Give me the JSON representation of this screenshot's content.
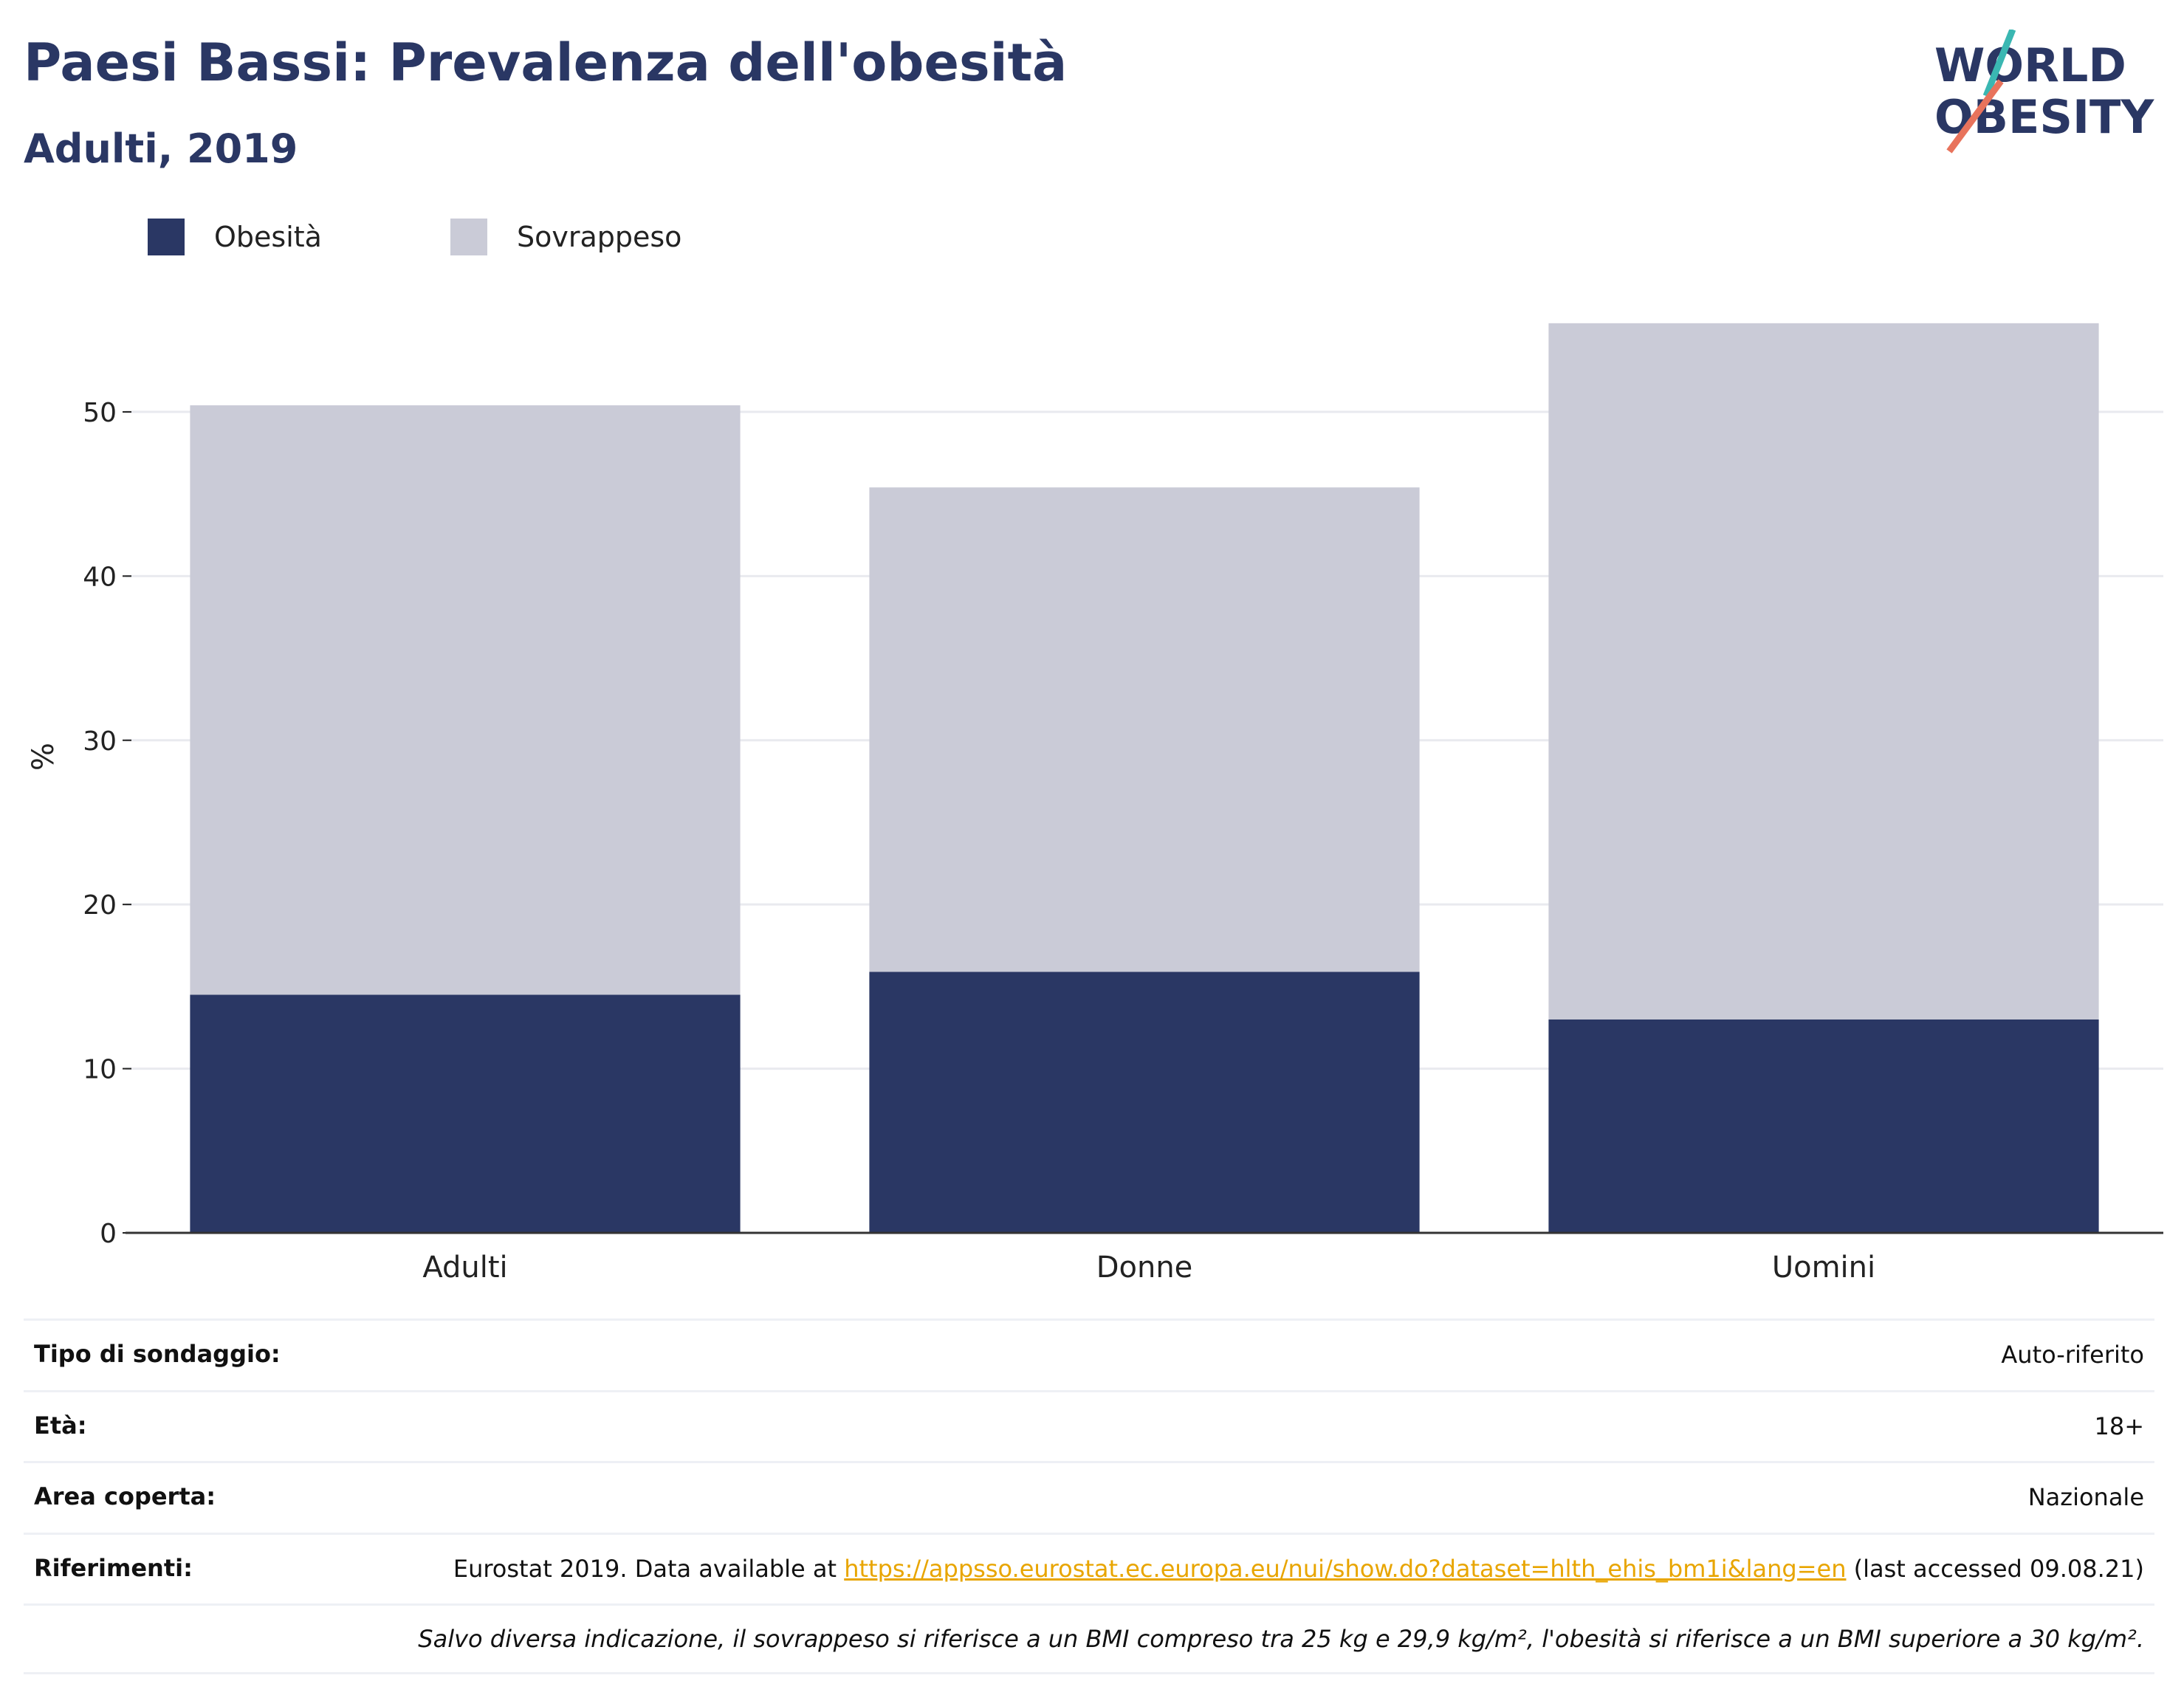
{
  "header": {
    "title": "Paesi Bassi: Prevalenza dell'obesità",
    "subtitle": "Adulti, 2019",
    "logo_line1": "WORLD",
    "logo_line2": "OBESITY"
  },
  "legend": {
    "obesity": "Obesità",
    "overweight": "Sovrappeso"
  },
  "colors": {
    "obesity": "#2a3764",
    "overweight": "#cacbd7",
    "text": "#2a3764",
    "link": "#e8a500",
    "logo_teal": "#3ab7b2",
    "logo_coral": "#e8735c"
  },
  "chart_data": {
    "type": "bar",
    "stacked": true,
    "categories": [
      "Adulti",
      "Donne",
      "Uomini"
    ],
    "series": [
      {
        "name": "Obesità",
        "values": [
          14.5,
          15.9,
          13
        ]
      },
      {
        "name": "Sovrappeso",
        "values": [
          35.9,
          29.5,
          42.4
        ]
      }
    ],
    "ylabel": "%",
    "ylim": [
      0,
      58
    ],
    "yticks": [
      0,
      10,
      20,
      30,
      40,
      50
    ],
    "grid": true,
    "legend_position": "top-left"
  },
  "info": {
    "rows": [
      {
        "key": "Tipo di sondaggio:",
        "value": "Auto-riferito"
      },
      {
        "key": "Età:",
        "value": "18+"
      },
      {
        "key": "Area coperta:",
        "value": "Nazionale"
      }
    ],
    "references_key": "Riferimenti:",
    "references_prefix": "Eurostat 2019. Data available at ",
    "references_link": "https://appsso.eurostat.ec.europa.eu/nui/show.do?dataset=hlth_ehis_bm1i&lang=en",
    "references_suffix": " (last accessed 09.08.21)",
    "note": "Salvo diversa indicazione, il sovrappeso si riferisce a un BMI compreso tra 25 kg e 29,9 kg/m², l'obesità si riferisce a un BMI superiore a 30 kg/m²."
  }
}
